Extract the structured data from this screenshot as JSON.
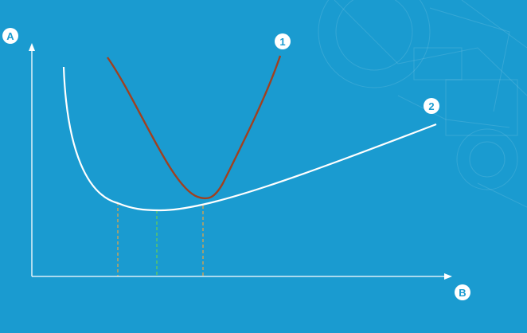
{
  "axes": {
    "y_label": "A",
    "x_label": "B"
  },
  "curves": [
    {
      "label": "1",
      "color": "#a0401f"
    },
    {
      "label": "2",
      "color": "#ffffff"
    }
  ],
  "guide_lines": [
    {
      "color": "#f2a33a"
    },
    {
      "color": "#6fcf4a"
    },
    {
      "color": "#f2a33a"
    }
  ],
  "colors": {
    "background": "#1a9bd0",
    "axis": "#ffffff",
    "badge_fill": "#ffffff",
    "badge_text": "#1a9bd0"
  }
}
